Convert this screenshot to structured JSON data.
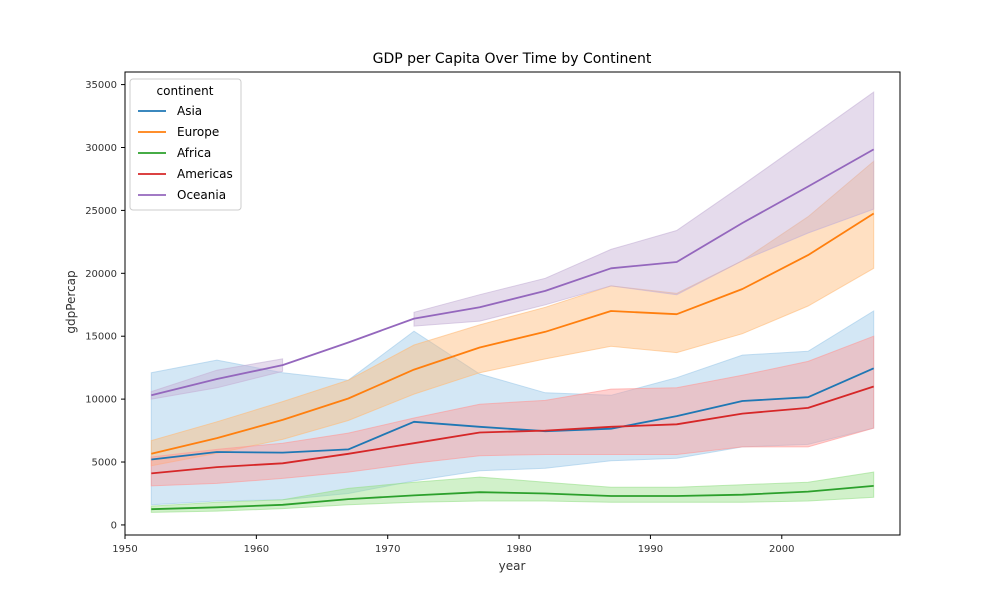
{
  "chart_data": {
    "type": "line",
    "title": "GDP per Capita Over Time by Continent",
    "xlabel": "year",
    "ylabel": "gdpPercap",
    "xlim": [
      1950,
      2009
    ],
    "ylim": [
      -800,
      36000
    ],
    "x_ticks": [
      1950,
      1960,
      1970,
      1980,
      1990,
      2000
    ],
    "y_ticks": [
      0,
      5000,
      10000,
      15000,
      20000,
      25000,
      30000,
      35000
    ],
    "grid": false,
    "legend": {
      "title": "continent",
      "position": "top-left"
    },
    "x": [
      1952,
      1957,
      1962,
      1967,
      1972,
      1977,
      1982,
      1987,
      1992,
      1997,
      2002,
      2007
    ],
    "series": [
      {
        "name": "Asia",
        "color": "#1f77b4",
        "band_color": "#9ecae9",
        "values": [
          5200,
          5800,
          5750,
          6000,
          8200,
          7800,
          7450,
          7650,
          8650,
          9850,
          10150,
          12450
        ],
        "lower": [
          1600,
          1900,
          2000,
          2500,
          3500,
          4300,
          4500,
          5100,
          5300,
          6200,
          6400,
          7700
        ],
        "upper": [
          12100,
          13100,
          12100,
          11500,
          15400,
          12000,
          10500,
          10300,
          11700,
          13500,
          13800,
          17000
        ]
      },
      {
        "name": "Europe",
        "color": "#ff7f0e",
        "band_color": "#ffbb78",
        "values": [
          5650,
          6900,
          8350,
          10050,
          12350,
          14100,
          15350,
          17000,
          16750,
          18750,
          21450,
          24750
        ],
        "lower": [
          4700,
          5700,
          6800,
          8300,
          10400,
          12100,
          13200,
          14200,
          13700,
          15200,
          17400,
          20400
        ],
        "upper": [
          6700,
          8200,
          9800,
          11500,
          14300,
          15900,
          17300,
          19000,
          18400,
          21000,
          24500,
          28900
        ]
      },
      {
        "name": "Africa",
        "color": "#2ca02c",
        "band_color": "#98df8a",
        "values": [
          1250,
          1400,
          1600,
          2050,
          2350,
          2600,
          2500,
          2300,
          2300,
          2400,
          2650,
          3100
        ],
        "lower": [
          1000,
          1100,
          1300,
          1600,
          1800,
          1900,
          1900,
          1800,
          1800,
          1800,
          1900,
          2200
        ],
        "upper": [
          1500,
          1800,
          2000,
          2900,
          3400,
          3800,
          3400,
          3000,
          3000,
          3200,
          3400,
          4200
        ]
      },
      {
        "name": "Americas",
        "color": "#d62728",
        "band_color": "#ff9896",
        "values": [
          4100,
          4600,
          4900,
          5650,
          6500,
          7350,
          7500,
          7800,
          8000,
          8850,
          9300,
          11000
        ],
        "lower": [
          3100,
          3300,
          3700,
          4200,
          4900,
          5500,
          5600,
          5600,
          5600,
          6200,
          6200,
          7700
        ],
        "upper": [
          5400,
          6000,
          6500,
          7300,
          8500,
          9600,
          9900,
          10800,
          10900,
          11900,
          13000,
          15000
        ]
      },
      {
        "name": "Oceania",
        "color": "#9467bd",
        "band_color": "#c5b0d5",
        "values": [
          10300,
          11600,
          12700,
          14500,
          16400,
          17300,
          18600,
          20400,
          20900,
          24000,
          26900,
          29850
        ],
        "lower": [
          10000,
          10900,
          12200,
          null,
          15800,
          16200,
          17500,
          19000,
          18300,
          21000,
          23200,
          25100
        ],
        "upper": [
          10600,
          12300,
          13200,
          null,
          16900,
          18300,
          19600,
          21900,
          23400,
          27000,
          30700,
          34400
        ]
      }
    ]
  }
}
